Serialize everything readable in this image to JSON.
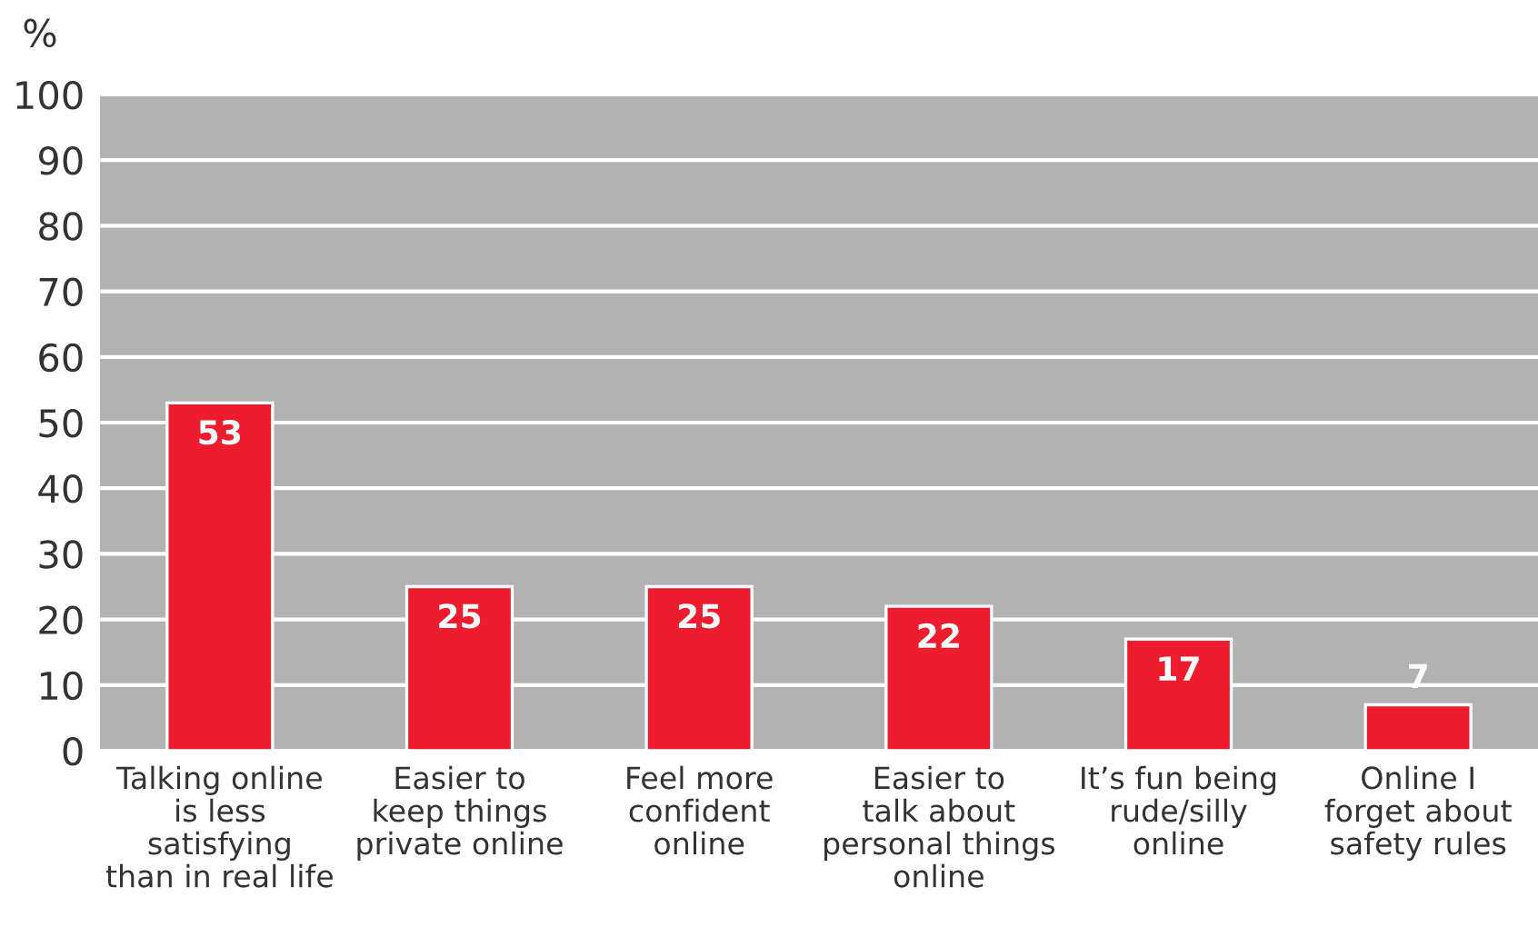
{
  "chart_data": {
    "type": "bar",
    "ylabel": "%",
    "categories": [
      "Talking online\nis less\nsatisfying\nthan in real life",
      "Easier to\nkeep things\nprivate online",
      "Feel more\nconfident\nonline",
      "Easier to\ntalk about\npersonal things\nonline",
      "It’s fun being\nrude/silly\nonline",
      "Online I\nforget about\nsafety rules"
    ],
    "values": [
      53,
      25,
      25,
      22,
      17,
      7
    ],
    "color": "#ed1c2e",
    "ylim": [
      0,
      100
    ],
    "yticks": [
      0,
      10,
      20,
      30,
      40,
      50,
      60,
      70,
      80,
      90,
      100
    ],
    "grid": "y",
    "data_labels": true
  }
}
